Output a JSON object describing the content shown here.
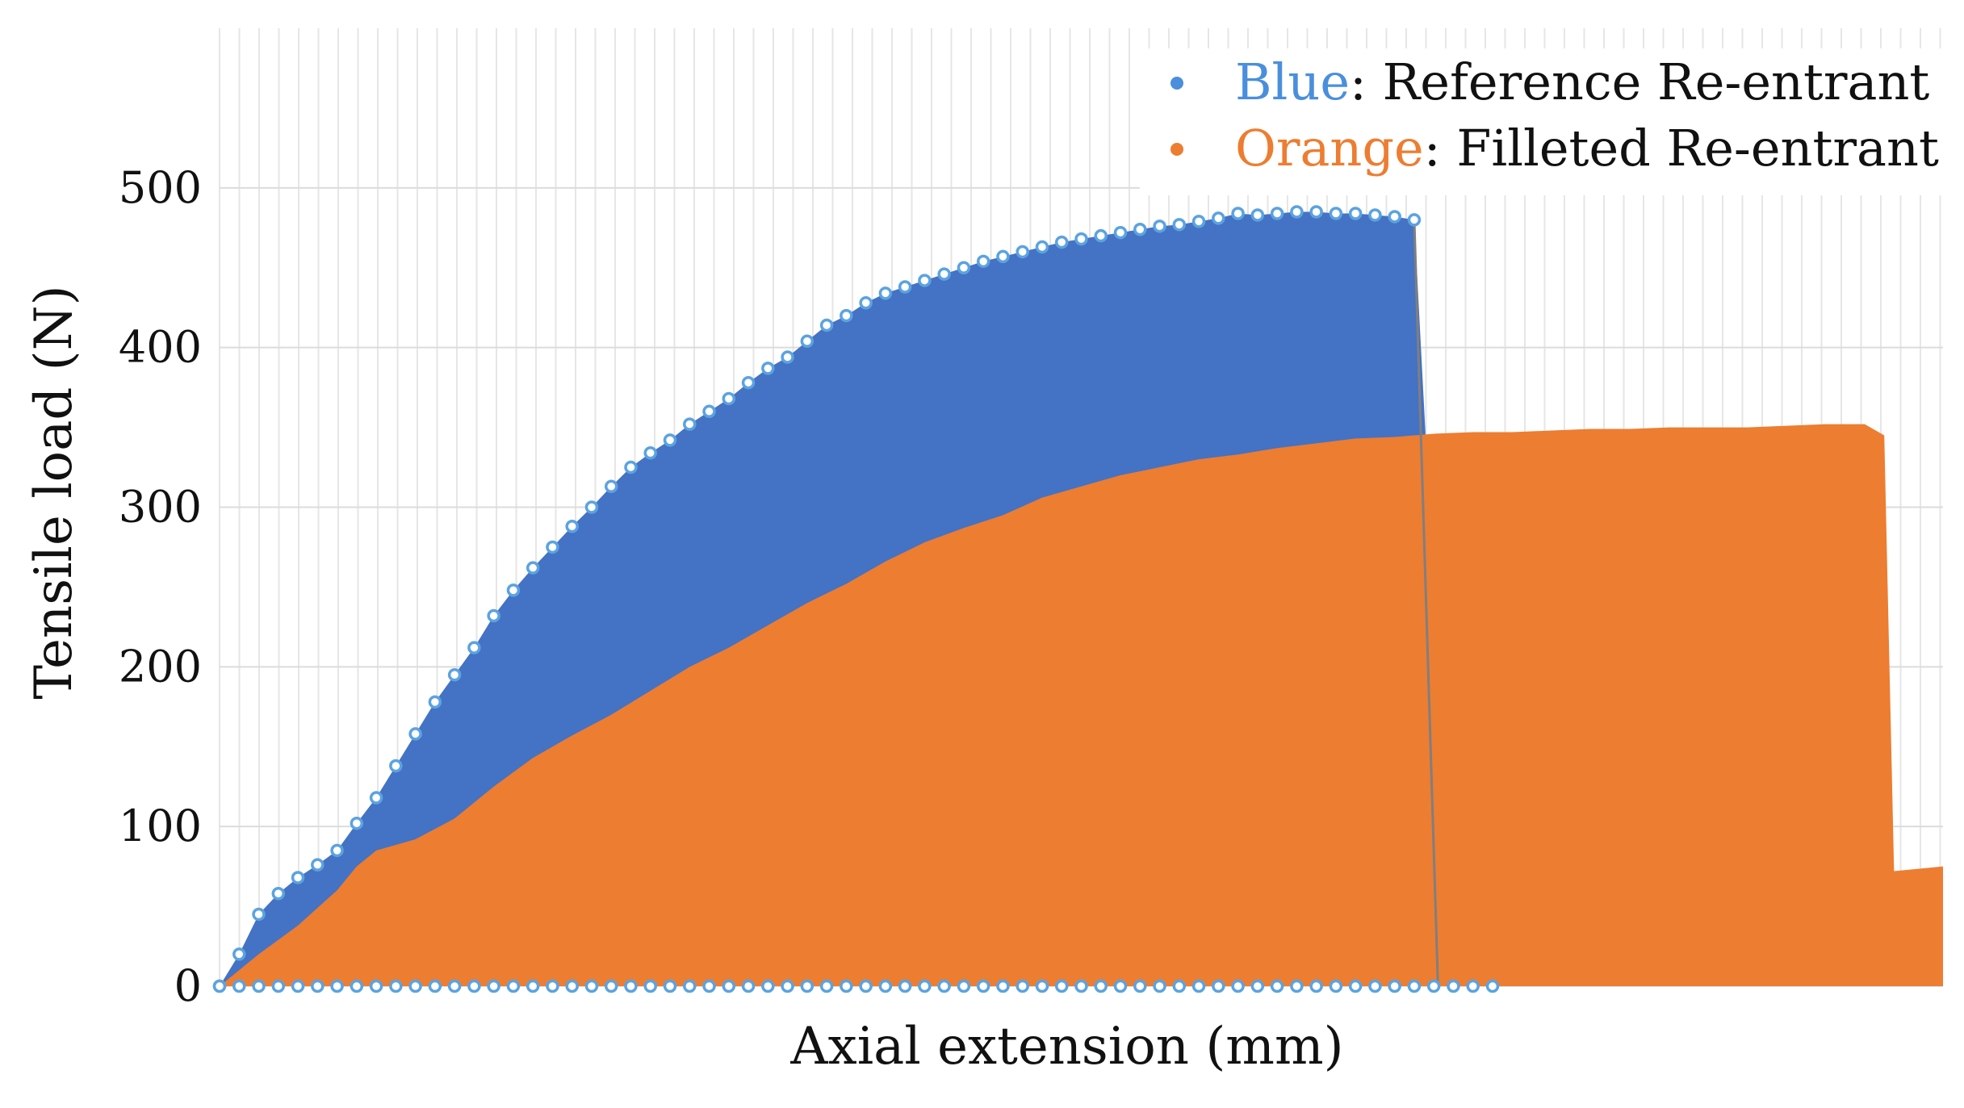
{
  "chart_data": {
    "type": "area",
    "title": "",
    "xlabel": "Axial extension (mm)",
    "ylabel": "Tensile load (N)",
    "ylim": [
      0,
      600
    ],
    "yticks": [
      0,
      100,
      200,
      300,
      400,
      500
    ],
    "xlim": [
      0,
      88
    ],
    "grid": true,
    "legend_position": "top-right",
    "legend": [
      {
        "color_word": "Blue",
        "text": ": Reference Re-entrant",
        "color": "#4a8fdc"
      },
      {
        "color_word": "Orange",
        "text": ": Filleted Re-entrant",
        "color": "#ed7d31"
      }
    ],
    "series": [
      {
        "name": "Reference Re-entrant",
        "color": "#4472c4",
        "marker_edge": "#5ba3e0",
        "x": [
          0,
          1,
          2,
          3,
          4,
          5,
          6,
          7,
          8,
          9,
          10,
          11,
          12,
          13,
          14,
          15,
          16,
          17,
          18,
          19,
          20,
          21,
          22,
          23,
          24,
          25,
          26,
          27,
          28,
          29,
          30,
          31,
          32,
          33,
          34,
          35,
          36,
          37,
          38,
          39,
          40,
          41,
          42,
          43,
          44,
          45,
          46,
          47,
          48,
          49,
          50,
          51,
          52,
          53,
          54,
          55,
          56,
          57,
          58,
          59,
          60,
          61,
          61.6,
          61.8
        ],
        "y": [
          0,
          20,
          45,
          58,
          68,
          76,
          85,
          102,
          118,
          138,
          158,
          178,
          195,
          212,
          232,
          248,
          262,
          275,
          288,
          300,
          313,
          325,
          334,
          342,
          352,
          360,
          368,
          378,
          387,
          394,
          404,
          414,
          420,
          428,
          434,
          438,
          442,
          446,
          450,
          454,
          457,
          460,
          463,
          466,
          468,
          470,
          472,
          474,
          476,
          477,
          479,
          481,
          484,
          483,
          484,
          485,
          485,
          484,
          484,
          483,
          482,
          480,
          340,
          0
        ]
      },
      {
        "name": "Filleted Re-entrant",
        "color": "#ed7d31",
        "x": [
          0,
          2,
          4,
          6,
          7,
          8,
          10,
          12,
          14,
          16,
          18,
          20,
          22,
          24,
          26,
          28,
          30,
          32,
          34,
          36,
          38,
          40,
          42,
          44,
          46,
          48,
          50,
          52,
          54,
          56,
          58,
          60,
          62,
          64,
          66,
          68,
          70,
          72,
          74,
          76,
          78,
          80,
          82,
          84,
          85,
          85.5,
          88
        ],
        "y": [
          0,
          20,
          38,
          60,
          75,
          85,
          92,
          105,
          125,
          143,
          157,
          170,
          185,
          200,
          212,
          226,
          240,
          252,
          266,
          278,
          287,
          295,
          306,
          313,
          320,
          325,
          330,
          333,
          337,
          340,
          343,
          344,
          346,
          347,
          347,
          348,
          349,
          349,
          350,
          350,
          350,
          351,
          352,
          352,
          345,
          72,
          75
        ]
      }
    ],
    "zero_marker_x_max": 65
  }
}
